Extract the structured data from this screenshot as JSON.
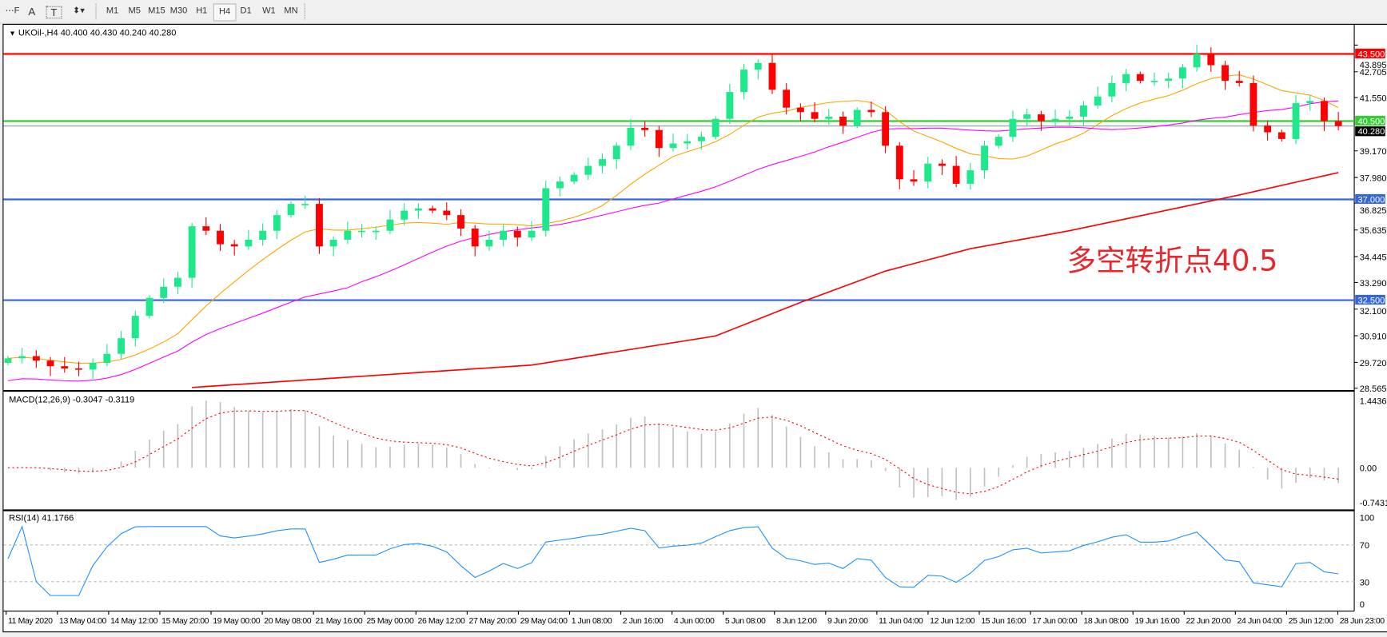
{
  "toolbar": {
    "tools": [
      {
        "name": "period-separator",
        "glyph": "⋯F"
      },
      {
        "name": "text",
        "glyph": "A"
      },
      {
        "name": "text-label",
        "glyph": "T"
      },
      {
        "name": "arrows",
        "glyph": "⬍▾"
      }
    ],
    "timeframes": [
      "M1",
      "M5",
      "M15",
      "M30",
      "H1",
      "H4",
      "D1",
      "W1",
      "MN"
    ],
    "selected_timeframe": "H4"
  },
  "chart": {
    "header": "UKOil-,H4  40.400 40.430 40.240 40.280",
    "annotation": "多空转折点40.5",
    "macd_label": "MACD(12,26,9) -0.3047 -0.3119",
    "rsi_label": "RSI(14) 41.1766",
    "colors": {
      "bull": "#1de98b",
      "bear": "#ff0000",
      "ma_fast": "#ffa500",
      "ma_mid": "#ff00ff",
      "ma_slow": "#ff0000",
      "rsi": "#1e90ff",
      "macd_hist": "#c0c0c0",
      "macd_signal": "#ff0000"
    }
  },
  "chart_data": {
    "type": "candlestick",
    "symbol": "UKOil-",
    "timeframe": "H4",
    "ohlc_last": {
      "open": 40.4,
      "high": 40.43,
      "low": 40.24,
      "close": 40.28
    },
    "ylim": [
      28.565,
      43.895
    ],
    "price_ticks": [
      43.895,
      42.705,
      41.55,
      39.17,
      37.98,
      36.825,
      35.635,
      34.445,
      33.29,
      32.1,
      30.91,
      29.72,
      28.565
    ],
    "price_tick_labels": [
      "43.895",
      "42.705",
      "41.550",
      "39.170",
      "37.980",
      "36.825",
      "35.635",
      "34.445",
      "33.290",
      "32.100",
      "30.910",
      "29.720",
      "28.565"
    ],
    "levels": [
      {
        "value": 43.5,
        "label": "43.500",
        "color": "#ff0000"
      },
      {
        "value": 40.5,
        "label": "40.500",
        "color": "#33cc33"
      },
      {
        "value": 37.0,
        "label": "37.000",
        "color": "#3366dd"
      },
      {
        "value": 32.5,
        "label": "32.500",
        "color": "#3366dd"
      }
    ],
    "current_price": {
      "value": 40.28,
      "label": "40.280"
    },
    "time_labels": [
      "11 May 2020",
      "13 May 04:00",
      "14 May 12:00",
      "15 May 20:00",
      "19 May 00:00",
      "20 May 08:00",
      "21 May 16:00",
      "25 May 00:00",
      "26 May 12:00",
      "27 May 20:00",
      "29 May 04:00",
      "1 Jun 08:00",
      "2 Jun 16:00",
      "4 Jun 00:00",
      "5 Jun 08:00",
      "8 Jun 12:00",
      "9 Jun 20:00",
      "11 Jun 04:00",
      "12 Jun 12:00",
      "15 Jun 16:00",
      "17 Jun 00:00",
      "18 Jun 08:00",
      "19 Jun 16:00",
      "22 Jun 20:00",
      "24 Jun 04:00",
      "25 Jun 12:00",
      "28 Jun 23:00"
    ],
    "closes": [
      29.9,
      30.0,
      29.8,
      29.55,
      29.45,
      29.4,
      29.7,
      30.1,
      30.8,
      31.8,
      32.6,
      33.1,
      33.5,
      35.8,
      35.6,
      35.0,
      34.9,
      35.2,
      35.6,
      36.3,
      36.8,
      36.8,
      34.9,
      35.2,
      35.6,
      35.6,
      35.6,
      36.1,
      36.5,
      36.6,
      36.5,
      36.3,
      35.7,
      34.9,
      35.2,
      35.6,
      35.3,
      35.6,
      37.5,
      37.8,
      38.1,
      38.5,
      38.8,
      39.4,
      40.2,
      40.1,
      39.3,
      39.5,
      39.6,
      39.8,
      40.6,
      41.8,
      42.8,
      43.1,
      41.9,
      41.1,
      40.9,
      40.6,
      40.7,
      40.3,
      41.0,
      40.9,
      39.4,
      37.9,
      37.8,
      38.6,
      38.5,
      37.7,
      38.3,
      39.4,
      39.8,
      40.6,
      40.8,
      40.5,
      40.6,
      40.7,
      41.2,
      41.6,
      42.2,
      42.6,
      42.3,
      42.3,
      42.4,
      42.9,
      43.5,
      43.0,
      42.3,
      42.2,
      40.3,
      40.0,
      39.7,
      41.3,
      41.4,
      40.5,
      40.28
    ],
    "ma_slow": [
      [
        13,
        28.6
      ],
      [
        25,
        29.1
      ],
      [
        37,
        29.6
      ],
      [
        50,
        30.9
      ],
      [
        56,
        32.4
      ],
      [
        62,
        33.8
      ],
      [
        68,
        34.8
      ],
      [
        75,
        35.6
      ],
      [
        81,
        36.4
      ],
      [
        87,
        37.2
      ],
      [
        94,
        38.2
      ]
    ],
    "macd": {
      "params": [
        12,
        26,
        9
      ],
      "main": -0.3047,
      "signal": -0.3119,
      "ylim": [
        -0.7431,
        1.4436
      ],
      "tick_labels": [
        "1.4436",
        "0.00",
        "-0.7431"
      ]
    },
    "rsi": {
      "period": 14,
      "value": 41.1766,
      "levels": [
        70,
        30
      ],
      "tick_labels": [
        "100",
        "70",
        "30",
        "0"
      ]
    }
  }
}
